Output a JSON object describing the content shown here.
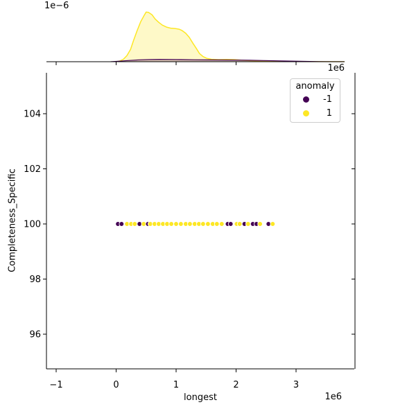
{
  "chart_data": {
    "type": "scatter",
    "subtype": "scatter_with_top_marginal_kde",
    "title": "",
    "xlabel": "longest",
    "ylabel": "Completeness_Specific",
    "axes": {
      "x_unit_scale": "1e6",
      "xlim": [
        -1.162,
        3.971
      ],
      "ylim": [
        94.742,
        105.484
      ],
      "xticks": [
        -1,
        0,
        1,
        2,
        3
      ],
      "xtick_labels": [
        "−1",
        "0",
        "1",
        "2",
        "3"
      ],
      "yticks": [
        96,
        98,
        100,
        102,
        104
      ],
      "ytick_labels": [
        "96",
        "98",
        "100",
        "102",
        "104"
      ],
      "grid": false
    },
    "legend": {
      "title": "anomaly",
      "entries": [
        {
          "label": "-1",
          "color": "#440154"
        },
        {
          "label": "1",
          "color": "#fde725"
        }
      ]
    },
    "points": {
      "y_constant": 100,
      "x_unit": "1e6",
      "x": [
        0.03,
        0.09,
        0.18,
        0.25,
        0.31,
        0.39,
        0.46,
        0.53,
        0.57,
        0.64,
        0.71,
        0.78,
        0.85,
        0.92,
        1.0,
        1.08,
        1.16,
        1.23,
        1.31,
        1.38,
        1.45,
        1.53,
        1.61,
        1.68,
        1.76,
        1.86,
        1.91,
        2.01,
        2.06,
        2.14,
        2.2,
        2.28,
        2.34,
        2.4,
        2.54,
        2.61
      ],
      "anomaly": [
        -1,
        -1,
        1,
        1,
        1,
        -1,
        1,
        -1,
        1,
        1,
        1,
        1,
        1,
        1,
        1,
        1,
        1,
        1,
        1,
        1,
        1,
        1,
        1,
        1,
        1,
        -1,
        -1,
        1,
        1,
        -1,
        1,
        -1,
        -1,
        1,
        -1,
        1
      ]
    },
    "top_marginal": {
      "density_offset_text": "1e−6",
      "density_unit": "1e-6",
      "series": [
        {
          "name": "1",
          "color": "#fde725",
          "x": [
            0.01,
            0.06,
            0.12,
            0.18,
            0.24,
            0.29,
            0.35,
            0.41,
            0.46,
            0.5,
            0.54,
            0.6,
            0.65,
            0.71,
            0.77,
            0.84,
            0.91,
            0.98,
            1.05,
            1.1,
            1.16,
            1.22,
            1.28,
            1.34,
            1.39,
            1.45,
            1.51,
            1.59,
            1.71,
            1.84,
            1.97,
            2.09,
            2.23,
            2.4,
            2.63,
            2.92,
            3.27,
            3.61,
            3.81
          ],
          "density": [
            0.0,
            0.02,
            0.07,
            0.18,
            0.36,
            0.62,
            0.91,
            1.17,
            1.33,
            1.45,
            1.44,
            1.37,
            1.25,
            1.15,
            1.07,
            1.01,
            0.98,
            0.97,
            0.95,
            0.91,
            0.83,
            0.71,
            0.54,
            0.38,
            0.24,
            0.15,
            0.1,
            0.07,
            0.06,
            0.064,
            0.06,
            0.044,
            0.03,
            0.02,
            0.012,
            0.006,
            0.002,
            0.0,
            0.0
          ]
        },
        {
          "name": "-1",
          "color": "#440154",
          "x": [
            -0.09,
            0.03,
            0.2,
            0.38,
            0.55,
            0.72,
            0.9,
            1.07,
            1.3,
            1.53,
            1.76,
            1.99,
            2.23,
            2.46,
            2.69,
            2.92,
            3.15,
            3.38,
            3.61,
            3.81
          ],
          "density": [
            0.0,
            0.014,
            0.034,
            0.054,
            0.064,
            0.068,
            0.066,
            0.062,
            0.056,
            0.052,
            0.05,
            0.048,
            0.042,
            0.034,
            0.026,
            0.018,
            0.01,
            0.004,
            0.0,
            0.0
          ]
        }
      ]
    },
    "colors": {
      "anomaly_neg": "#440154",
      "anomaly_pos": "#fde725",
      "kde_pos_fill": "rgba(253,231,37,0.25)",
      "kde_neg_fill": "rgba(68,1,84,0.25)",
      "axis": "#000000",
      "legend_border": "#cccccc"
    }
  }
}
